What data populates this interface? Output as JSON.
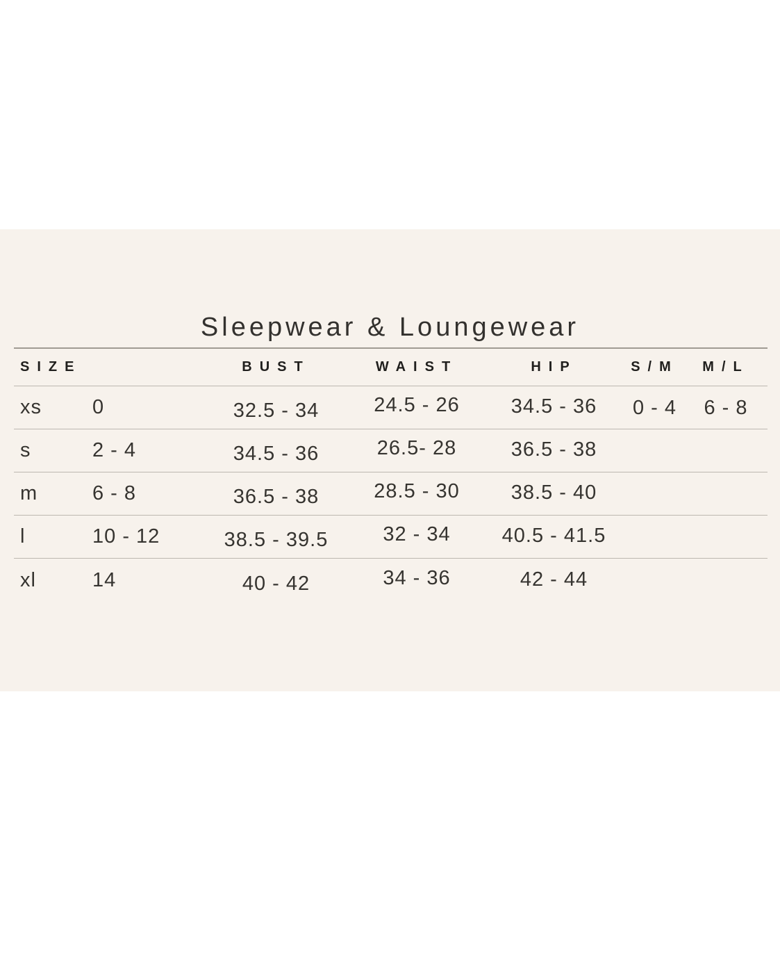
{
  "chart": {
    "title": "Sleepwear & Loungewear",
    "columns": [
      "SIZE",
      "BUST",
      "WAIST",
      "HIP",
      "S/M",
      "M/L"
    ],
    "rows": [
      {
        "size": "xs",
        "numeric_size": "0",
        "bust": "32.5 - 34",
        "waist": "24.5 - 26",
        "hip": "34.5 - 36",
        "sm": "0 - 4",
        "ml": "6 - 8"
      },
      {
        "size": "s",
        "numeric_size": "2 - 4",
        "bust": "34.5 - 36",
        "waist": "26.5- 28",
        "hip": "36.5 - 38",
        "sm": "",
        "ml": ""
      },
      {
        "size": "m",
        "numeric_size": "6 - 8",
        "bust": "36.5 - 38",
        "waist": "28.5 - 30",
        "hip": "38.5 - 40",
        "sm": "",
        "ml": ""
      },
      {
        "size": "l",
        "numeric_size": "10 - 12",
        "bust": "38.5 - 39.5",
        "waist": "32 - 34",
        "hip": "40.5 - 41.5",
        "sm": "",
        "ml": ""
      },
      {
        "size": "xl",
        "numeric_size": "14",
        "bust": "40 - 42",
        "waist": "34 - 36",
        "hip": "42 - 44",
        "sm": "",
        "ml": ""
      }
    ],
    "colors": {
      "page_background": "#ffffff",
      "panel_background": "#f7f2ec",
      "text": "#363430",
      "rule_heavy": "#a09b93",
      "rule_light": "#bcb7b0"
    }
  }
}
